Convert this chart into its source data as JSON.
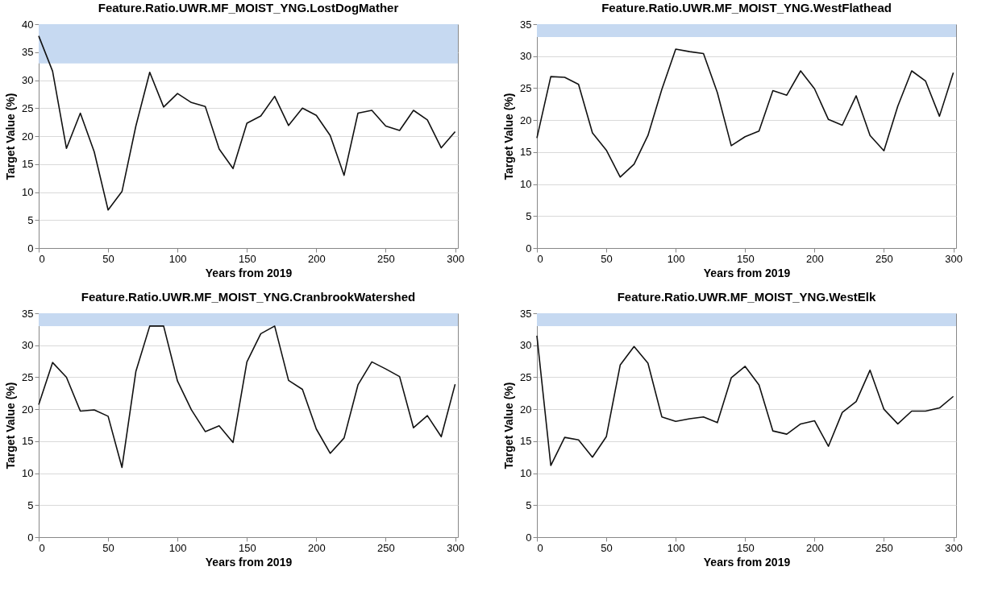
{
  "chart_data": [
    {
      "type": "line",
      "title": "Feature.Ratio.UWR.MF_MOIST_YNG.LostDogMather",
      "xlabel": "Years from 2019",
      "ylabel": "Target Value (%)",
      "x": [
        0,
        10,
        20,
        30,
        40,
        50,
        60,
        70,
        80,
        90,
        100,
        110,
        120,
        130,
        140,
        150,
        160,
        170,
        180,
        190,
        200,
        210,
        220,
        230,
        240,
        250,
        260,
        270,
        280,
        290,
        300
      ],
      "series": [
        {
          "color": "#111111",
          "values": [
            37.9,
            31.6,
            17.8,
            24.1,
            17.2,
            6.8,
            10.1,
            21.8,
            31.4,
            25.2,
            27.6,
            26.0,
            25.3,
            17.7,
            14.2,
            22.3,
            23.6,
            27.1,
            21.9,
            25.0,
            23.7,
            20.1,
            13.0,
            24.1,
            24.6,
            21.8,
            21.0,
            24.6,
            22.9,
            17.9,
            20.8
          ]
        }
      ],
      "xlim": [
        0,
        302
      ],
      "xticks": [
        0,
        50,
        100,
        150,
        200,
        250,
        300
      ],
      "ylim": [
        0,
        40
      ],
      "yticks": [
        0,
        5,
        10,
        15,
        20,
        25,
        30,
        35,
        40
      ],
      "grid": "y",
      "marker": "none",
      "line_style": "solid",
      "bands": [
        {
          "axis": "y",
          "from": 33,
          "to": 40,
          "color": "#c6d9f1"
        }
      ]
    },
    {
      "type": "line",
      "title": "Feature.Ratio.UWR.MF_MOIST_YNG.WestFlathead",
      "xlabel": "Years from 2019",
      "ylabel": "Target Value (%)",
      "x": [
        0,
        10,
        20,
        30,
        40,
        50,
        60,
        70,
        80,
        90,
        100,
        110,
        120,
        130,
        140,
        150,
        160,
        170,
        180,
        190,
        200,
        210,
        220,
        230,
        240,
        250,
        260,
        270,
        280,
        290,
        300
      ],
      "series": [
        {
          "color": "#111111",
          "values": [
            17.2,
            26.8,
            26.7,
            25.6,
            18.0,
            15.3,
            11.1,
            13.1,
            17.6,
            24.8,
            31.1,
            30.7,
            30.4,
            24.3,
            16.0,
            17.4,
            18.3,
            24.6,
            23.9,
            27.7,
            24.9,
            20.1,
            19.2,
            23.8,
            17.6,
            15.2,
            22.2,
            27.7,
            26.1,
            20.6,
            27.4
          ]
        }
      ],
      "xlim": [
        0,
        302
      ],
      "xticks": [
        0,
        50,
        100,
        150,
        200,
        250,
        300
      ],
      "ylim": [
        0,
        35
      ],
      "yticks": [
        0,
        5,
        10,
        15,
        20,
        25,
        30,
        35
      ],
      "grid": "y",
      "marker": "none",
      "line_style": "solid",
      "bands": [
        {
          "axis": "y",
          "from": 33,
          "to": 35,
          "color": "#c6d9f1"
        }
      ]
    },
    {
      "type": "line",
      "title": "Feature.Ratio.UWR.MF_MOIST_YNG.CranbrookWatershed",
      "xlabel": "Years from 2019",
      "ylabel": "Target Value (%)",
      "x": [
        0,
        10,
        20,
        30,
        40,
        50,
        60,
        70,
        80,
        90,
        100,
        110,
        120,
        130,
        140,
        150,
        160,
        170,
        180,
        190,
        200,
        210,
        220,
        230,
        240,
        250,
        260,
        270,
        280,
        290,
        300
      ],
      "series": [
        {
          "color": "#111111",
          "values": [
            20.7,
            27.3,
            25.0,
            19.7,
            19.9,
            18.9,
            10.9,
            25.9,
            33.0,
            33.0,
            24.4,
            19.9,
            16.5,
            17.4,
            14.8,
            27.4,
            31.8,
            33.0,
            24.5,
            23.1,
            16.9,
            13.1,
            15.5,
            23.8,
            27.4,
            26.3,
            25.1,
            17.1,
            19.0,
            15.7,
            23.9
          ]
        }
      ],
      "xlim": [
        0,
        302
      ],
      "xticks": [
        0,
        50,
        100,
        150,
        200,
        250,
        300
      ],
      "ylim": [
        0,
        35
      ],
      "yticks": [
        0,
        5,
        10,
        15,
        20,
        25,
        30,
        35
      ],
      "grid": "y",
      "marker": "none",
      "line_style": "solid",
      "bands": [
        {
          "axis": "y",
          "from": 33,
          "to": 35,
          "color": "#c6d9f1"
        }
      ]
    },
    {
      "type": "line",
      "title": "Feature.Ratio.UWR.MF_MOIST_YNG.WestElk",
      "xlabel": "Years from 2019",
      "ylabel": "Target Value (%)",
      "x": [
        0,
        10,
        20,
        30,
        40,
        50,
        60,
        70,
        80,
        90,
        100,
        110,
        120,
        130,
        140,
        150,
        160,
        170,
        180,
        190,
        200,
        210,
        220,
        230,
        240,
        250,
        260,
        270,
        280,
        290,
        300
      ],
      "series": [
        {
          "color": "#111111",
          "values": [
            31.5,
            11.2,
            15.6,
            15.2,
            12.5,
            15.7,
            26.9,
            29.8,
            27.2,
            18.8,
            18.1,
            18.5,
            18.8,
            17.9,
            24.9,
            26.7,
            23.8,
            16.6,
            16.1,
            17.7,
            18.2,
            14.2,
            19.5,
            21.2,
            26.1,
            20.0,
            17.7,
            19.7,
            19.7,
            20.2,
            22.0
          ]
        }
      ],
      "xlim": [
        0,
        302
      ],
      "xticks": [
        0,
        50,
        100,
        150,
        200,
        250,
        300
      ],
      "ylim": [
        0,
        35
      ],
      "yticks": [
        0,
        5,
        10,
        15,
        20,
        25,
        30,
        35
      ],
      "grid": "y",
      "marker": "none",
      "line_style": "solid",
      "bands": [
        {
          "axis": "y",
          "from": 33,
          "to": 35,
          "color": "#c6d9f1"
        }
      ]
    }
  ]
}
